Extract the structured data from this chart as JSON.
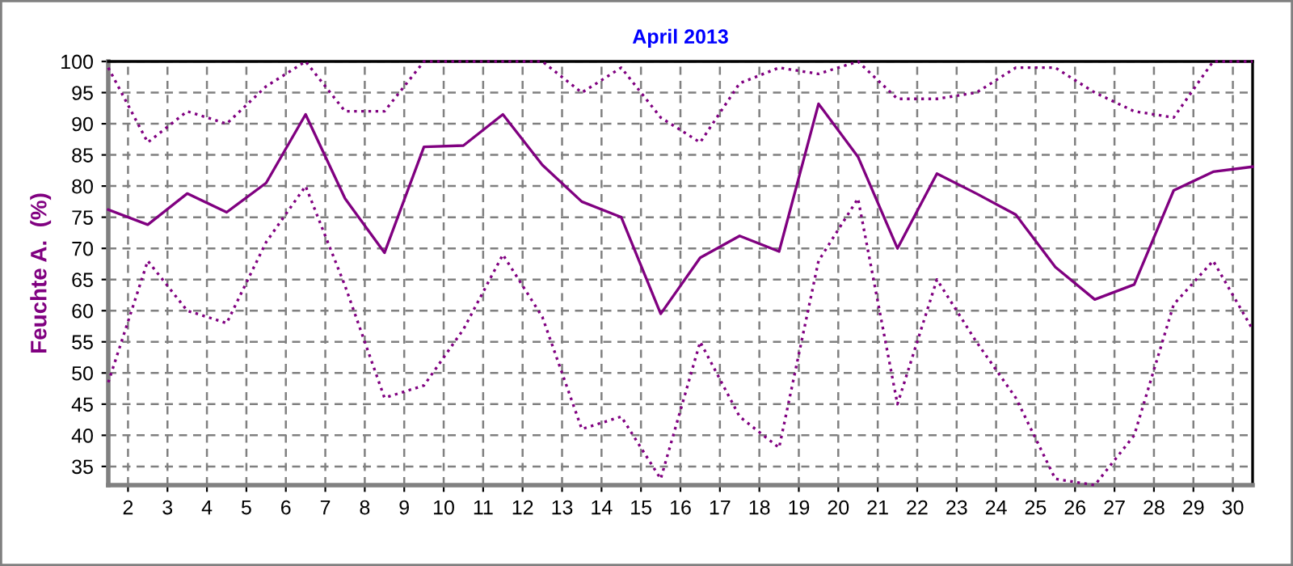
{
  "chart_data": {
    "type": "line",
    "title": "April 2013",
    "ylabel": "Feuchte A.  (%)",
    "x": [
      1.5,
      2.5,
      3.5,
      4.5,
      5.5,
      6.5,
      7.5,
      8.5,
      9.5,
      10.5,
      11.5,
      12.5,
      13.5,
      14.5,
      15.5,
      16.5,
      17.5,
      18.5,
      19.5,
      20.5,
      21.5,
      22.5,
      23.5,
      24.5,
      25.5,
      26.5,
      27.5,
      28.5,
      29.5,
      30.5
    ],
    "series": [
      {
        "color": "#800080",
        "line_style": "dotted",
        "values": [
          99,
          87,
          92,
          90,
          96,
          100,
          92,
          92,
          100,
          100,
          100,
          100,
          95,
          99,
          91,
          87,
          96.5,
          99,
          98,
          100,
          94,
          94,
          95,
          99,
          99,
          95,
          92,
          91,
          100,
          100
        ]
      },
      {
        "color": "#800080",
        "line_style": "solid",
        "values": [
          76.2,
          73.8,
          78.8,
          75.8,
          80.5,
          91.5,
          78,
          69.3,
          86.3,
          86.5,
          91.5,
          83.4,
          77.5,
          75,
          59.5,
          68.5,
          72,
          69.5,
          93.2,
          84.7,
          70,
          82,
          78.8,
          75.4,
          67,
          61.8,
          64.2,
          79.3,
          82.3,
          83.1
        ]
      },
      {
        "color": "#800080",
        "line_style": "dotted",
        "values": [
          48.5,
          68,
          60,
          58,
          71,
          80,
          64,
          46,
          48,
          57,
          69,
          59,
          41,
          43,
          33,
          55,
          43,
          38,
          68,
          78,
          45,
          65,
          55,
          46,
          33,
          32,
          40,
          61,
          68,
          57
        ]
      }
    ],
    "xlim": [
      1.5,
      30.5
    ],
    "xticks": [
      2,
      3,
      4,
      5,
      6,
      7,
      8,
      9,
      10,
      11,
      12,
      13,
      14,
      15,
      16,
      17,
      18,
      19,
      20,
      21,
      22,
      23,
      24,
      25,
      26,
      27,
      28,
      29,
      30
    ],
    "ylim": [
      32,
      100
    ],
    "yticks": [
      35,
      40,
      45,
      50,
      55,
      60,
      65,
      70,
      75,
      80,
      85,
      90,
      95,
      100
    ],
    "grid": true,
    "marker": "none"
  }
}
